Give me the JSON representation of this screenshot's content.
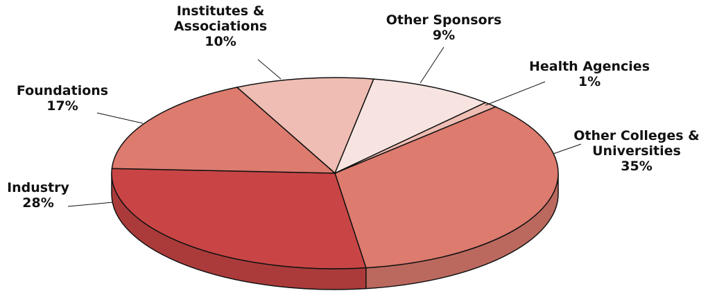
{
  "chart_data": {
    "type": "pie",
    "three_d": true,
    "categories": [
      "Other Colleges & Universities",
      "Industry",
      "Foundations",
      "Institutes & Associations",
      "Other Sponsors",
      "Health Agencies"
    ],
    "values": [
      35,
      28,
      17,
      10,
      9,
      1
    ],
    "value_labels": [
      "35%",
      "28%",
      "17%",
      "10%",
      "9%",
      "1%"
    ],
    "colors": [
      "#dc7b6e",
      "#c94545",
      "#dc7b6e",
      "#efbdb3",
      "#f7e4e1",
      "#efbdb3"
    ]
  }
}
